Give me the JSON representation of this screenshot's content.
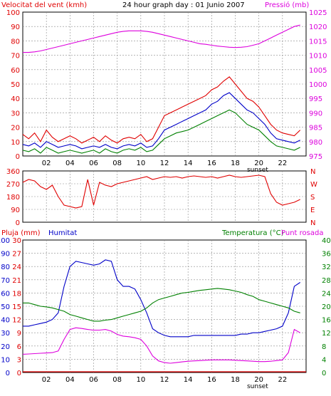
{
  "header": {
    "left_label": "Velocitat del vent (kmh)",
    "title": "24 hour graph day : 01 Junio 2007",
    "right_label": "Pressió (mb)"
  },
  "colors": {
    "red": "#e00000",
    "blue": "#0000c8",
    "green": "#008000",
    "magenta": "#dd00dd",
    "frame": "#000000",
    "grid": "#8c8c8c",
    "background": "#ffffff"
  },
  "x_tick_labels": [
    "02",
    "04",
    "06",
    "08",
    "10",
    "12",
    "14",
    "16",
    "18",
    "20",
    "22"
  ],
  "sunset_label": "sunset",
  "chart_data": [
    {
      "type": "line",
      "panel": "wind-pressure",
      "ylabel_left": "Velocitat del vent (kmh)",
      "ylabel_right": "Pressió (mb)",
      "xlim": [
        0,
        24
      ],
      "ylim_left": [
        0,
        100
      ],
      "ylim_right": [
        975,
        1025
      ],
      "left_ticks": [
        "0",
        "10",
        "20",
        "30",
        "40",
        "50",
        "60",
        "70",
        "80",
        "90",
        "100"
      ],
      "right_ticks": [
        "975",
        "980",
        "985",
        "990",
        "995",
        "1000",
        "1005",
        "1010",
        "1015",
        "1020",
        "1025"
      ],
      "x": [
        0,
        0.5,
        1,
        1.5,
        2,
        2.5,
        3,
        3.5,
        4,
        4.5,
        5,
        5.5,
        6,
        6.5,
        7,
        7.5,
        8,
        8.5,
        9,
        9.5,
        10,
        10.5,
        11,
        11.5,
        12,
        12.5,
        13,
        13.5,
        14,
        14.5,
        15,
        15.5,
        16,
        16.5,
        17,
        17.5,
        18,
        18.5,
        19,
        19.5,
        20,
        20.5,
        21,
        21.5,
        22,
        22.5,
        23,
        23.5
      ],
      "series": [
        {
          "color": "#e00000",
          "axis": "left",
          "values": [
            15,
            12,
            16,
            10,
            18,
            13,
            10,
            12,
            14,
            12,
            9,
            11,
            13,
            10,
            14,
            11,
            9,
            12,
            13,
            12,
            15,
            10,
            12,
            20,
            28,
            30,
            32,
            34,
            36,
            38,
            40,
            42,
            46,
            48,
            52,
            55,
            50,
            45,
            40,
            38,
            34,
            28,
            22,
            18,
            16,
            15,
            14,
            18
          ]
        },
        {
          "color": "#0000c8",
          "axis": "left",
          "values": [
            8,
            7,
            9,
            6,
            10,
            8,
            6,
            7,
            8,
            7,
            5,
            6,
            7,
            6,
            8,
            6,
            5,
            7,
            8,
            7,
            9,
            6,
            7,
            12,
            18,
            20,
            22,
            24,
            26,
            28,
            30,
            32,
            36,
            38,
            42,
            44,
            40,
            36,
            32,
            30,
            26,
            22,
            16,
            12,
            11,
            10,
            9,
            11
          ]
        },
        {
          "color": "#008000",
          "axis": "left",
          "values": [
            4,
            3,
            5,
            2,
            6,
            4,
            2,
            3,
            4,
            3,
            2,
            3,
            4,
            2,
            5,
            3,
            2,
            4,
            5,
            4,
            6,
            3,
            4,
            8,
            12,
            14,
            16,
            17,
            18,
            20,
            22,
            24,
            26,
            28,
            30,
            32,
            30,
            26,
            22,
            20,
            18,
            14,
            10,
            7,
            6,
            5,
            4,
            6
          ]
        },
        {
          "color": "#dd00dd",
          "axis": "right",
          "values": [
            1011,
            1011,
            1011.2,
            1011.5,
            1012,
            1012.5,
            1013,
            1013.5,
            1014,
            1014.5,
            1015,
            1015.5,
            1016,
            1016.5,
            1017,
            1017.5,
            1018,
            1018.3,
            1018.5,
            1018.5,
            1018.5,
            1018.3,
            1018,
            1017.5,
            1017,
            1016.5,
            1016,
            1015.5,
            1015,
            1014.5,
            1014,
            1013.8,
            1013.5,
            1013.2,
            1013,
            1012.8,
            1012.7,
            1012.8,
            1013,
            1013.5,
            1014,
            1015,
            1016,
            1017,
            1018,
            1019,
            1020,
            1020.5
          ]
        }
      ]
    },
    {
      "type": "line",
      "panel": "wind-direction",
      "xlim": [
        0,
        24
      ],
      "ylim": [
        0,
        360
      ],
      "left_ticks": [
        "0",
        "90",
        "180",
        "270",
        "360"
      ],
      "right_ticks": [
        "N",
        "E",
        "S",
        "W",
        "N"
      ],
      "x": [
        0,
        0.5,
        1,
        1.5,
        2,
        2.5,
        3,
        3.5,
        4,
        4.5,
        5,
        5.5,
        6,
        6.5,
        7,
        7.5,
        8,
        8.5,
        9,
        9.5,
        10,
        10.5,
        11,
        11.5,
        12,
        12.5,
        13,
        13.5,
        14,
        14.5,
        15,
        15.5,
        16,
        16.5,
        17,
        17.5,
        18,
        18.5,
        19,
        19.5,
        20,
        20.5,
        21,
        21.5,
        22,
        22.5,
        23,
        23.5
      ],
      "series": [
        {
          "color": "#e00000",
          "values": [
            280,
            300,
            290,
            250,
            230,
            260,
            180,
            120,
            110,
            100,
            110,
            300,
            120,
            280,
            260,
            250,
            270,
            280,
            290,
            300,
            310,
            320,
            300,
            310,
            320,
            315,
            320,
            310,
            320,
            325,
            320,
            315,
            320,
            310,
            320,
            330,
            320,
            315,
            320,
            325,
            330,
            320,
            200,
            140,
            120,
            130,
            140,
            160
          ]
        }
      ]
    },
    {
      "type": "line",
      "panel": "rain-humidity-temperature",
      "ylabel_left_1": "Pluja (mm)",
      "ylabel_left_2": "Humitat",
      "ylabel_right_1": "Temperatura (°C)",
      "ylabel_right_2": "Punt rosada",
      "xlim": [
        0,
        24
      ],
      "ylim_rain": [
        0,
        30
      ],
      "ylim_humidity": [
        0,
        100
      ],
      "ylim_temperature": [
        0,
        40
      ],
      "rain_ticks": [
        "0",
        "3",
        "6",
        "9",
        "12",
        "15",
        "18",
        "21",
        "24",
        "27",
        "30"
      ],
      "humidity_ticks": [
        "0",
        "10",
        "20",
        "30",
        "40",
        "50",
        "60",
        "70",
        "80",
        "90",
        "100"
      ],
      "temperature_ticks": [
        "0",
        "4",
        "8",
        "12",
        "16",
        "20",
        "24",
        "28",
        "32",
        "36",
        "40"
      ],
      "x": [
        0,
        0.5,
        1,
        1.5,
        2,
        2.5,
        3,
        3.5,
        4,
        4.5,
        5,
        5.5,
        6,
        6.5,
        7,
        7.5,
        8,
        8.5,
        9,
        9.5,
        10,
        10.5,
        11,
        11.5,
        12,
        12.5,
        13,
        13.5,
        14,
        14.5,
        15,
        15.5,
        16,
        16.5,
        17,
        17.5,
        18,
        18.5,
        19,
        19.5,
        20,
        20.5,
        21,
        21.5,
        22,
        22.5,
        23,
        23.5
      ],
      "series": [
        {
          "color": "#0000c8",
          "axis": "humidity",
          "values": [
            35,
            35,
            36,
            37,
            38,
            40,
            45,
            65,
            80,
            84,
            83,
            82,
            81,
            82,
            85,
            84,
            70,
            65,
            65,
            63,
            55,
            45,
            33,
            30,
            28,
            27,
            27,
            27,
            27,
            28,
            28,
            28,
            28,
            28,
            28,
            28,
            28,
            29,
            29,
            30,
            30,
            31,
            32,
            33,
            35,
            45,
            65,
            68
          ]
        },
        {
          "color": "#008000",
          "axis": "temperature",
          "values": [
            21,
            21,
            20.5,
            20,
            19.8,
            19.5,
            19,
            18.5,
            17.5,
            17,
            16.5,
            16,
            15.5,
            15.5,
            15.8,
            16,
            16.5,
            17,
            17.5,
            18,
            18.5,
            19.5,
            21,
            22,
            22.5,
            23,
            23.5,
            24,
            24.2,
            24.5,
            24.8,
            25,
            25.2,
            25.4,
            25.2,
            25,
            24.6,
            24.2,
            23.5,
            23,
            22,
            21.5,
            21,
            20.5,
            20,
            19.5,
            18.5,
            18
          ]
        },
        {
          "color": "#dd00dd",
          "axis": "temperature",
          "values": [
            5.5,
            5.6,
            5.7,
            5.8,
            5.9,
            6,
            6.5,
            10,
            13,
            13.5,
            13.3,
            13,
            12.8,
            12.8,
            13,
            12.5,
            11.5,
            11,
            10.8,
            10.5,
            10,
            8,
            5,
            3.5,
            3,
            2.8,
            3,
            3.2,
            3.4,
            3.5,
            3.6,
            3.7,
            3.8,
            3.8,
            3.8,
            3.8,
            3.7,
            3.6,
            3.5,
            3.4,
            3.3,
            3.3,
            3.4,
            3.6,
            3.8,
            6,
            13,
            12
          ]
        }
      ],
      "rain_total": 0
    }
  ]
}
